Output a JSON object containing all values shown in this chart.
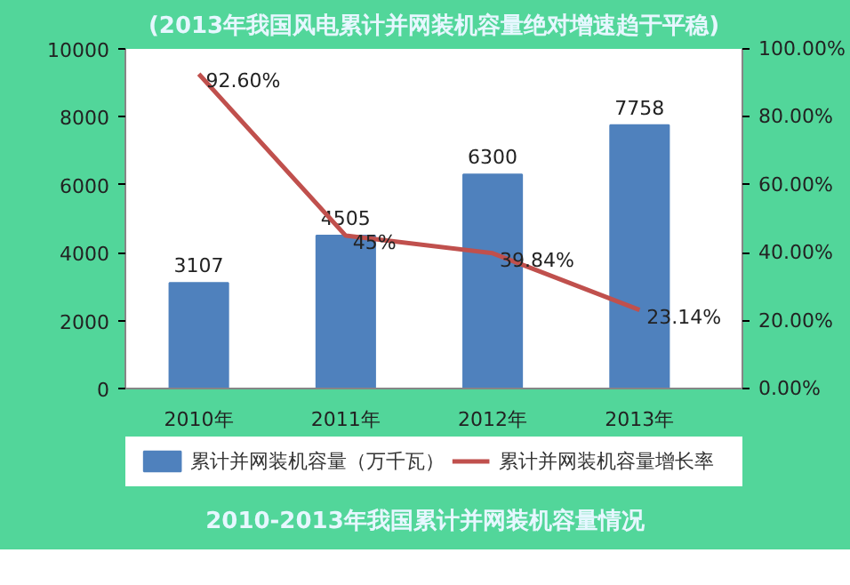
{
  "chart_data": {
    "type": "bar",
    "title": "(2013年我国风电累计并网装机容量绝对增速趋于平稳)",
    "annotations": [
      "2010-2013年我国累计并网装机容量情况"
    ],
    "categories": [
      "2010年",
      "2011年",
      "2012年",
      "2013年"
    ],
    "series": [
      {
        "name": "累计并网装机容量（万千瓦）",
        "color": "#4f81bd",
        "values": [
          3107,
          4505,
          6300,
          7758
        ],
        "value_labels": [
          "3107",
          "4505",
          "6300",
          "7758"
        ]
      },
      {
        "name": "累计并网装机容量增长率",
        "type": "line",
        "axis": "y2",
        "color": "#c0504d",
        "values": [
          92.6,
          45,
          39.84,
          23.14
        ],
        "value_labels": [
          "92.60%",
          "45%",
          "39.84%",
          "23.14%"
        ]
      }
    ],
    "ylim": [
      0,
      10000
    ],
    "yticks": [
      0,
      2000,
      4000,
      6000,
      8000,
      10000
    ],
    "y2lim": [
      0,
      100
    ],
    "y2ticks": [
      {
        "value": 0,
        "label": "0.00%"
      },
      {
        "value": 20,
        "label": "20.00%"
      },
      {
        "value": 40,
        "label": "40.00%"
      },
      {
        "value": 60,
        "label": "60.00%"
      },
      {
        "value": 80,
        "label": "80.00%"
      },
      {
        "value": 100,
        "label": "100.00%"
      }
    ],
    "grid": false,
    "legend": "bottom",
    "marker": "none",
    "line_style": "solid"
  }
}
